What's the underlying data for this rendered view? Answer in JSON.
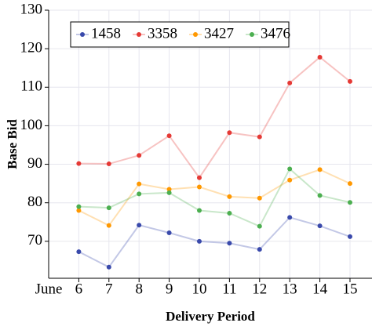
{
  "chart_data": {
    "type": "line",
    "x": [
      6,
      7,
      8,
      9,
      10,
      11,
      12,
      13,
      14,
      15
    ],
    "x_prefix_label": "June",
    "xlabel": "Delivery Period",
    "ylabel": "Base Bid",
    "xlim": [
      5,
      15.73
    ],
    "xticks": [
      6,
      7,
      8,
      9,
      10,
      11,
      12,
      13,
      14,
      15
    ],
    "ylim": [
      60.4,
      130
    ],
    "yticks": [
      70,
      80,
      90,
      100,
      110,
      120,
      130
    ],
    "grid": true,
    "legend": "top-left",
    "series": [
      {
        "name": "1458",
        "color": "#3949ab",
        "values": [
          67.3,
          63.3,
          74.2,
          72.2,
          70.0,
          69.5,
          67.9,
          76.2,
          74.0,
          71.2
        ]
      },
      {
        "name": "3358",
        "color": "#e53935",
        "values": [
          90.2,
          90.1,
          92.3,
          97.4,
          86.5,
          98.2,
          97.1,
          111.1,
          117.8,
          111.5
        ]
      },
      {
        "name": "3427",
        "color": "#ff9800",
        "values": [
          78.0,
          74.1,
          84.9,
          83.5,
          84.1,
          81.6,
          81.2,
          85.9,
          88.6,
          85.0
        ]
      },
      {
        "name": "3476",
        "color": "#4caf50",
        "values": [
          79.0,
          78.7,
          82.3,
          82.6,
          78.0,
          77.3,
          73.9,
          88.8,
          81.9,
          80.1
        ]
      }
    ]
  }
}
